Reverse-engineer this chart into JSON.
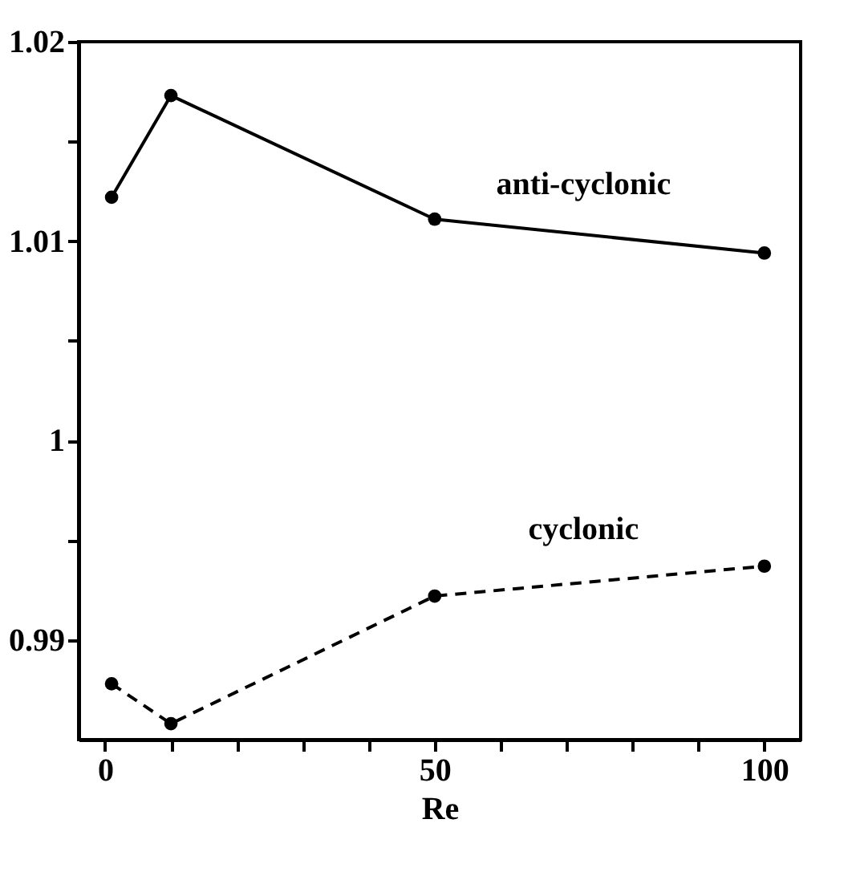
{
  "chart_data": {
    "type": "line",
    "xlabel": "Re",
    "x": [
      1,
      10,
      50,
      100
    ],
    "series": [
      {
        "name": "anti-cyclonic",
        "color": "#000000",
        "line_style": "solid",
        "values": [
          1.0122,
          1.0173,
          1.0111,
          1.0094
        ]
      },
      {
        "name": "cyclonic",
        "color": "#000000",
        "line_style": "dashed",
        "values": [
          0.9878,
          0.9858,
          0.9922,
          0.9937
        ]
      }
    ],
    "xlim": [
      -4,
      105.5
    ],
    "xticks": [
      0,
      {
        "value": 10,
        "label": null
      },
      {
        "value": 20,
        "label": null
      },
      {
        "value": 30,
        "label": null
      },
      {
        "value": 40,
        "label": null
      },
      50,
      {
        "value": 60,
        "label": null
      },
      {
        "value": 70,
        "label": null
      },
      {
        "value": 80,
        "label": null
      },
      {
        "value": 90,
        "label": null
      },
      100
    ],
    "ylim": [
      0.985,
      1.02
    ],
    "yticks": [
      0.99,
      {
        "value": 0.995,
        "label": null
      },
      1,
      {
        "value": 1.005,
        "label": null
      },
      1.01,
      {
        "value": 1.015,
        "label": null
      },
      1.02
    ],
    "grid": false,
    "legend": false,
    "marker": "circle"
  }
}
